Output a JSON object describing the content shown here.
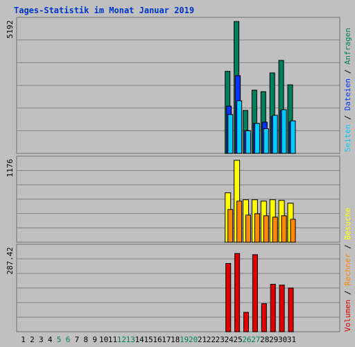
{
  "title": "Tages-Statistik im Monat Januar 2019",
  "colors": {
    "background": "#c0c0c0",
    "title": "#0033cc",
    "gridline": "#808080",
    "anfragen": "#00805a",
    "dateien": "#0033ff",
    "seiten": "#00ccff",
    "besuche": "#ffff00",
    "rechner": "#ff8800",
    "volumen": "#e00000",
    "weekend_label": "#00805a",
    "weekday_label": "#000000",
    "separator": "#000000"
  },
  "chart_data": [
    {
      "type": "bar",
      "panel": "top",
      "ylim": [
        0,
        5192
      ],
      "ytick_label": "5192",
      "categories": [
        "1",
        "2",
        "3",
        "4",
        "5",
        "6",
        "7",
        "8",
        "9",
        "10",
        "11",
        "12",
        "13",
        "14",
        "15",
        "16",
        "17",
        "18",
        "19",
        "20",
        "21",
        "22",
        "23",
        "24",
        "25",
        "26",
        "27",
        "28",
        "29",
        "30",
        "31"
      ],
      "series": [
        {
          "name": "Anfragen",
          "values": [
            0,
            0,
            0,
            0,
            0,
            0,
            0,
            0,
            0,
            0,
            0,
            0,
            0,
            0,
            0,
            0,
            0,
            0,
            0,
            0,
            0,
            0,
            0,
            3230,
            5192,
            1690,
            2490,
            2430,
            3170,
            3660,
            2700
          ]
        },
        {
          "name": "Dateien",
          "values": [
            0,
            0,
            0,
            0,
            0,
            0,
            0,
            0,
            0,
            0,
            0,
            0,
            0,
            0,
            0,
            0,
            0,
            0,
            0,
            0,
            0,
            0,
            0,
            1860,
            3060,
            900,
            1180,
            1230,
            1450,
            1690,
            1240
          ]
        },
        {
          "name": "Seiten",
          "values": [
            0,
            0,
            0,
            0,
            0,
            0,
            0,
            0,
            0,
            0,
            0,
            0,
            0,
            0,
            0,
            0,
            0,
            0,
            0,
            0,
            0,
            0,
            0,
            1530,
            2070,
            890,
            1180,
            970,
            1500,
            1720,
            1280
          ]
        }
      ]
    },
    {
      "type": "bar",
      "panel": "middle",
      "ylim": [
        0,
        1176
      ],
      "ytick_label": "1176",
      "categories": [
        "1",
        "2",
        "3",
        "4",
        "5",
        "6",
        "7",
        "8",
        "9",
        "10",
        "11",
        "12",
        "13",
        "14",
        "15",
        "16",
        "17",
        "18",
        "19",
        "20",
        "21",
        "22",
        "23",
        "24",
        "25",
        "26",
        "27",
        "28",
        "29",
        "30",
        "31"
      ],
      "series": [
        {
          "name": "Besuche",
          "values": [
            0,
            0,
            0,
            0,
            0,
            0,
            0,
            0,
            0,
            0,
            0,
            0,
            0,
            0,
            0,
            0,
            0,
            0,
            0,
            0,
            0,
            0,
            0,
            710,
            1176,
            610,
            610,
            590,
            610,
            600,
            560
          ]
        },
        {
          "name": "Rechner",
          "values": [
            0,
            0,
            0,
            0,
            0,
            0,
            0,
            0,
            0,
            0,
            0,
            0,
            0,
            0,
            0,
            0,
            0,
            0,
            0,
            0,
            0,
            0,
            0,
            470,
            590,
            390,
            410,
            380,
            360,
            380,
            330
          ]
        }
      ]
    },
    {
      "type": "bar",
      "panel": "bottom",
      "ylim": [
        0,
        287.42
      ],
      "ytick_label": "287.42",
      "categories": [
        "1",
        "2",
        "3",
        "4",
        "5",
        "6",
        "7",
        "8",
        "9",
        "10",
        "11",
        "12",
        "13",
        "14",
        "15",
        "16",
        "17",
        "18",
        "19",
        "20",
        "21",
        "22",
        "23",
        "24",
        "25",
        "26",
        "27",
        "28",
        "29",
        "30",
        "31"
      ],
      "series": [
        {
          "name": "Volumen",
          "values": [
            0,
            0,
            0,
            0,
            0,
            0,
            0,
            0,
            0,
            0,
            0,
            0,
            0,
            0,
            0,
            0,
            0,
            0,
            0,
            0,
            0,
            0,
            0,
            236,
            270,
            67,
            266,
            97,
            164,
            161,
            151
          ]
        }
      ]
    }
  ],
  "weekend_days": [
    5,
    6,
    12,
    13,
    19,
    20,
    26,
    27
  ],
  "legend": {
    "anfragen": "Anfragen",
    "dateien": "Dateien",
    "seiten": "Seiten",
    "besuche": "Besuche",
    "rechner": "Rechner",
    "volumen": "Volumen",
    "separator": "/"
  }
}
